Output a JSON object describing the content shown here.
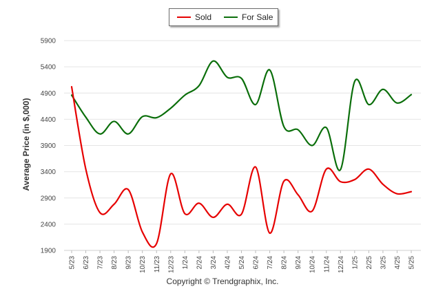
{
  "chart_data": {
    "type": "line",
    "ylabel": "Average Price (in $,000)",
    "ylim": [
      1900,
      5900
    ],
    "yticks": [
      1900,
      2400,
      2900,
      3400,
      3900,
      4400,
      4900,
      5400,
      5900
    ],
    "grid": true,
    "legend_position": "top-center",
    "categories": [
      "5/23",
      "6/23",
      "7/23",
      "8/23",
      "9/23",
      "10/23",
      "11/23",
      "12/23",
      "1/24",
      "2/24",
      "3/24",
      "4/24",
      "5/24",
      "6/24",
      "7/24",
      "8/24",
      "9/24",
      "10/24",
      "11/24",
      "12/24",
      "1/25",
      "2/25",
      "3/25",
      "4/25",
      "5/25"
    ],
    "series": [
      {
        "name": "Sold",
        "color": "#e60000",
        "values": [
          5020,
          3450,
          2620,
          2780,
          3060,
          2250,
          2030,
          3360,
          2600,
          2800,
          2530,
          2780,
          2590,
          3490,
          2230,
          3220,
          2960,
          2650,
          3450,
          3210,
          3250,
          3450,
          3160,
          2980,
          3020
        ]
      },
      {
        "name": "For Sale",
        "color": "#0a6e0a",
        "values": [
          4860,
          4440,
          4120,
          4360,
          4120,
          4450,
          4430,
          4610,
          4860,
          5040,
          5510,
          5200,
          5180,
          4680,
          5340,
          4260,
          4200,
          3900,
          4240,
          3440,
          5120,
          4680,
          4970,
          4710,
          4870
        ]
      }
    ]
  },
  "copyright": "Copyright © Trendgraphix, Inc."
}
